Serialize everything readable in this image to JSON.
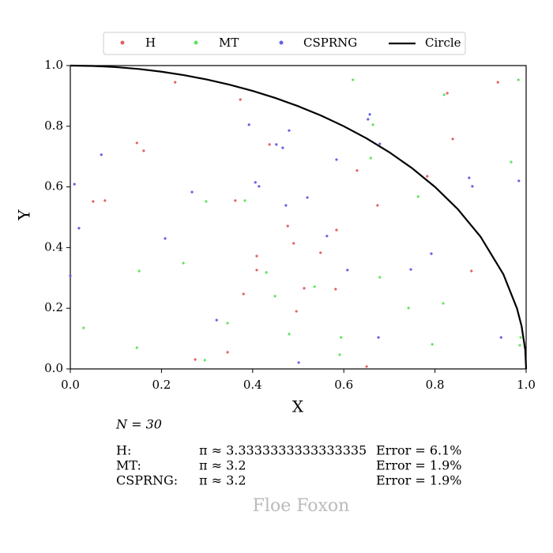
{
  "chart_data": {
    "type": "scatter",
    "xlabel": "X",
    "ylabel": "Y",
    "xlim": [
      0,
      1
    ],
    "ylim": [
      0,
      1
    ],
    "xticks": [
      {
        "value": 0,
        "label": "0.0"
      },
      {
        "value": 0.2,
        "label": "0.2"
      },
      {
        "value": 0.4,
        "label": "0.4"
      },
      {
        "value": 0.6,
        "label": "0.6"
      },
      {
        "value": 0.8,
        "label": "0.8"
      },
      {
        "value": 1,
        "label": "1.0"
      }
    ],
    "yticks": [
      {
        "value": 0,
        "label": "0.0"
      },
      {
        "value": 0.2,
        "label": "0.2"
      },
      {
        "value": 0.4,
        "label": "0.4"
      },
      {
        "value": 0.6,
        "label": "0.6"
      },
      {
        "value": 0.8,
        "label": "0.8"
      },
      {
        "value": 1,
        "label": "1.0"
      }
    ],
    "legend": "top",
    "series": [
      {
        "name": "H",
        "color": "#e36262",
        "type": "scatter",
        "x": [
          0.23,
          0.373,
          0.146,
          0.161,
          0.05,
          0.076,
          0.362,
          0.437,
          0.477,
          0.49,
          0.409,
          0.409,
          0.38,
          0.513,
          0.549,
          0.584,
          0.582,
          0.496,
          0.345,
          0.274,
          0.65,
          0.629,
          0.674,
          0.783,
          0.839,
          0.827,
          0.938,
          0.88
        ],
        "values": [
          0.945,
          0.888,
          0.745,
          0.719,
          0.552,
          0.555,
          0.555,
          0.74,
          0.471,
          0.414,
          0.372,
          0.326,
          0.247,
          0.266,
          0.383,
          0.458,
          0.263,
          0.19,
          0.055,
          0.031,
          0.008,
          0.654,
          0.539,
          0.635,
          0.758,
          0.909,
          0.945,
          0.323
        ]
      },
      {
        "name": "MT",
        "color": "#62e362",
        "type": "scatter",
        "x": [
          0.62,
          0.983,
          0.82,
          0.967,
          0.659,
          0.664,
          0.763,
          0.298,
          0.383,
          0.248,
          0.151,
          0.43,
          0.449,
          0.536,
          0.679,
          0.742,
          0.818,
          0.029,
          0.345,
          0.48,
          0.594,
          0.146,
          0.295,
          0.591,
          0.794,
          0.986,
          0.988
        ],
        "values": [
          0.953,
          0.953,
          0.904,
          0.682,
          0.695,
          0.805,
          0.568,
          0.552,
          0.555,
          0.349,
          0.323,
          0.318,
          0.24,
          0.271,
          0.302,
          0.201,
          0.216,
          0.135,
          0.151,
          0.115,
          0.104,
          0.07,
          0.029,
          0.047,
          0.081,
          0.078,
          0.104
        ]
      },
      {
        "name": "CSPRNG",
        "color": "#6262e3",
        "type": "scatter",
        "x": [
          0.009,
          0.068,
          0.019,
          0.0,
          0.392,
          0.48,
          0.452,
          0.466,
          0.267,
          0.208,
          0.406,
          0.414,
          0.473,
          0.52,
          0.563,
          0.608,
          0.584,
          0.657,
          0.653,
          0.679,
          0.875,
          0.882,
          0.984,
          0.792,
          0.747,
          0.321,
          0.501,
          0.676,
          0.945
        ],
        "values": [
          0.609,
          0.706,
          0.464,
          0.307,
          0.805,
          0.786,
          0.74,
          0.729,
          0.583,
          0.43,
          0.615,
          0.602,
          0.539,
          0.565,
          0.438,
          0.326,
          0.69,
          0.839,
          0.823,
          0.742,
          0.63,
          0.602,
          0.62,
          0.38,
          0.328,
          0.161,
          0.021,
          0.104,
          0.104
        ]
      },
      {
        "name": "Circle",
        "color": "#000000",
        "type": "line",
        "x": [
          0,
          0.05,
          0.1,
          0.15,
          0.2,
          0.25,
          0.3,
          0.35,
          0.4,
          0.45,
          0.5,
          0.55,
          0.6,
          0.65,
          0.7,
          0.75,
          0.8,
          0.85,
          0.9,
          0.95,
          0.98,
          0.99,
          0.998,
          1
        ],
        "values": [
          1,
          0.9987,
          0.995,
          0.9887,
          0.9798,
          0.9682,
          0.9539,
          0.9367,
          0.9165,
          0.893,
          0.866,
          0.8352,
          0.8,
          0.7599,
          0.7141,
          0.6614,
          0.6,
          0.5268,
          0.4359,
          0.3122,
          0.199,
          0.141,
          0.0632,
          0
        ]
      }
    ],
    "annotations": {
      "n": "N = 30",
      "rows": [
        [
          "H:",
          "π ≈ 3.3333333333333335",
          "Error = 6.1%"
        ],
        [
          "MT:",
          "π ≈ 3.2",
          "Error = 1.9%"
        ],
        [
          "CSPRNG:",
          "π ≈ 3.2",
          "Error = 1.9%"
        ]
      ]
    },
    "watermark": "Floe Foxon"
  }
}
